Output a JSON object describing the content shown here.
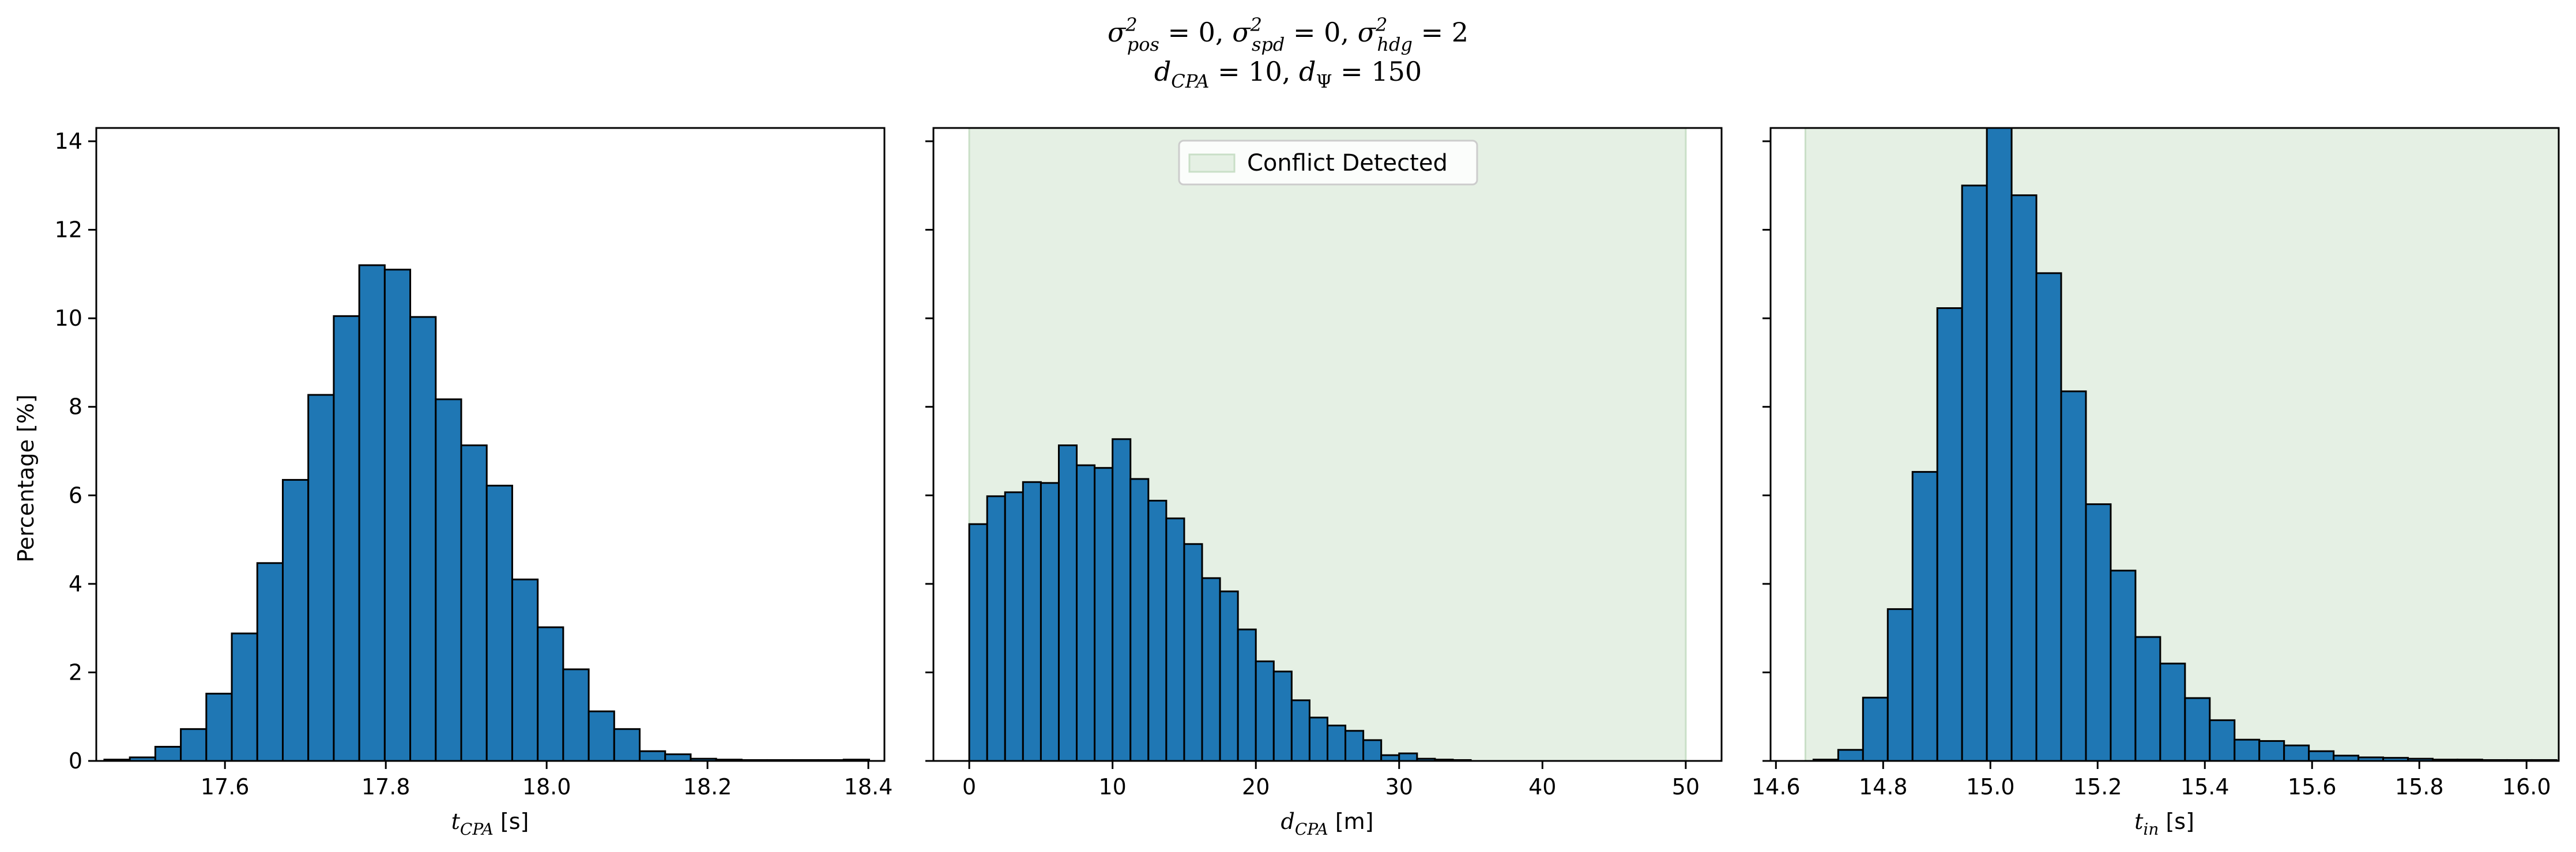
{
  "figure": {
    "title_line1": "σ²pos = 0, σ²spd = 0, σ²hdg = 2",
    "title_line2": "dCPA = 10, dΨ = 150",
    "ylabel": "Percentage [%]"
  },
  "colors": {
    "bar_fill": "#1f77b4",
    "bar_edge": "#000000",
    "shade": "#e5f0e4",
    "shade_edge": "#c9dfc7"
  },
  "chart_data": [
    {
      "type": "bar",
      "title": "",
      "xlabel": "t_CPA [s]",
      "ylabel": "Percentage [%]",
      "xlim": [
        17.44,
        18.42
      ],
      "ylim": [
        0,
        14.3
      ],
      "xticks": [
        17.6,
        17.8,
        18.0,
        18.2,
        18.4
      ],
      "yticks": [
        0,
        2,
        4,
        6,
        8,
        10,
        12,
        14
      ],
      "bin_start": 17.45,
      "bin_width": 0.0317,
      "values": [
        0.03,
        0.08,
        0.32,
        0.72,
        1.52,
        2.88,
        4.47,
        6.35,
        8.27,
        10.05,
        11.2,
        11.1,
        10.03,
        8.17,
        7.13,
        6.22,
        4.1,
        3.02,
        2.07,
        1.12,
        0.72,
        0.22,
        0.15,
        0.05,
        0.03,
        0.02,
        0.02,
        0.02,
        0.02,
        0.03
      ]
    },
    {
      "type": "bar",
      "title": "",
      "xlabel": "d_CPA [m]",
      "xlim": [
        -2.5,
        52.5
      ],
      "ylim": [
        0,
        14.3
      ],
      "xticks": [
        0,
        10,
        20,
        30,
        40,
        50
      ],
      "shaded_region": {
        "x": [
          0,
          50
        ],
        "label": "Conflict Detected"
      },
      "legend": {
        "position": "upper center",
        "entries": [
          "Conflict Detected"
        ]
      },
      "bin_start": 0,
      "bin_width": 1.25,
      "values": [
        5.35,
        5.98,
        6.07,
        6.3,
        6.28,
        7.13,
        6.68,
        6.62,
        7.27,
        6.37,
        5.88,
        5.48,
        4.9,
        4.13,
        3.83,
        2.97,
        2.25,
        2.02,
        1.37,
        0.98,
        0.8,
        0.68,
        0.47,
        0.13,
        0.17,
        0.05,
        0.03,
        0.02
      ]
    },
    {
      "type": "bar",
      "title": "",
      "xlabel": "t_in [s]",
      "xlim": [
        14.59,
        16.06
      ],
      "ylim": [
        0,
        14.3
      ],
      "xticks": [
        14.6,
        14.8,
        15.0,
        15.2,
        15.4,
        15.6,
        15.8,
        16.0
      ],
      "shaded_region": {
        "x": [
          14.655,
          16.06
        ],
        "label": "Conflict Detected"
      },
      "bin_start": 14.67,
      "bin_width": 0.0462,
      "values": [
        0.03,
        0.25,
        1.43,
        3.43,
        6.53,
        10.23,
        13.0,
        14.3,
        12.78,
        11.02,
        8.35,
        5.8,
        4.3,
        2.8,
        2.2,
        1.42,
        0.92,
        0.48,
        0.45,
        0.35,
        0.22,
        0.12,
        0.08,
        0.07,
        0.05,
        0.03,
        0.03,
        0.02,
        0.02,
        0.02
      ]
    }
  ]
}
